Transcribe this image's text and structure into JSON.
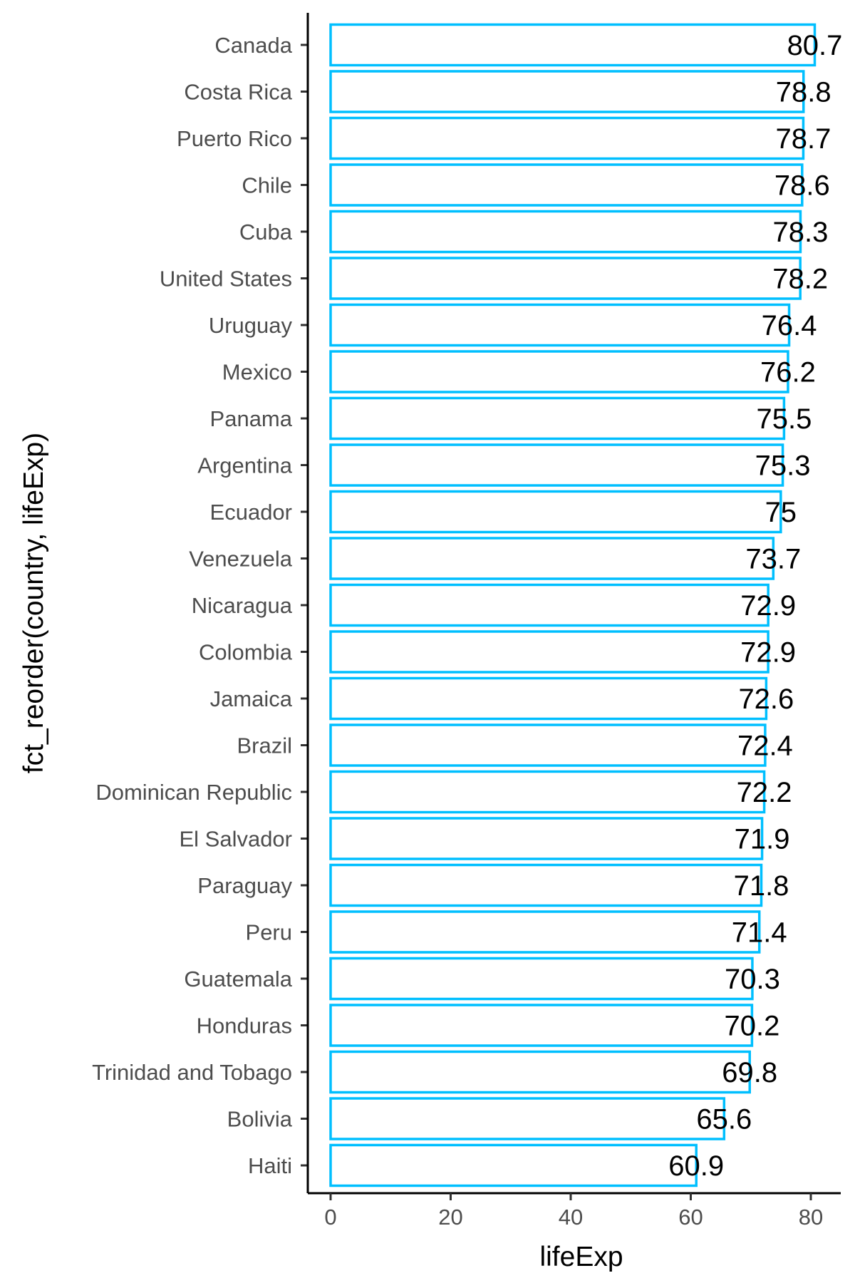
{
  "chart_data": {
    "type": "bar",
    "orientation": "horizontal",
    "xlabel": "lifeExp",
    "ylabel": "fct_reorder(country, lifeExp)",
    "xlim": [
      0,
      84
    ],
    "x_ticks": [
      0,
      20,
      40,
      60,
      80
    ],
    "x_tick_labels": [
      "0",
      "20",
      "40",
      "60",
      "80"
    ],
    "categories": [
      "Canada",
      "Costa Rica",
      "Puerto Rico",
      "Chile",
      "Cuba",
      "United States",
      "Uruguay",
      "Mexico",
      "Panama",
      "Argentina",
      "Ecuador",
      "Venezuela",
      "Nicaragua",
      "Colombia",
      "Jamaica",
      "Brazil",
      "Dominican Republic",
      "El Salvador",
      "Paraguay",
      "Peru",
      "Guatemala",
      "Honduras",
      "Trinidad and Tobago",
      "Bolivia",
      "Haiti"
    ],
    "values": [
      80.653,
      78.782,
      78.746,
      78.553,
      78.273,
      78.242,
      76.384,
      76.195,
      75.537,
      75.32,
      74.994,
      73.747,
      72.899,
      72.889,
      72.567,
      72.39,
      72.235,
      71.878,
      71.752,
      71.421,
      70.259,
      70.198,
      69.819,
      65.554,
      60.916
    ],
    "data_labels": [
      "80.7",
      "78.8",
      "78.7",
      "78.6",
      "78.3",
      "78.2",
      "76.4",
      "76.2",
      "75.5",
      "75.3",
      "75",
      "73.7",
      "72.9",
      "72.9",
      "72.6",
      "72.4",
      "72.2",
      "71.9",
      "71.8",
      "71.4",
      "70.3",
      "70.2",
      "69.8",
      "65.6",
      "60.9"
    ],
    "bar_outline_color": "#00BFFF",
    "bar_fill": "none",
    "grid": false,
    "legend": "none"
  }
}
